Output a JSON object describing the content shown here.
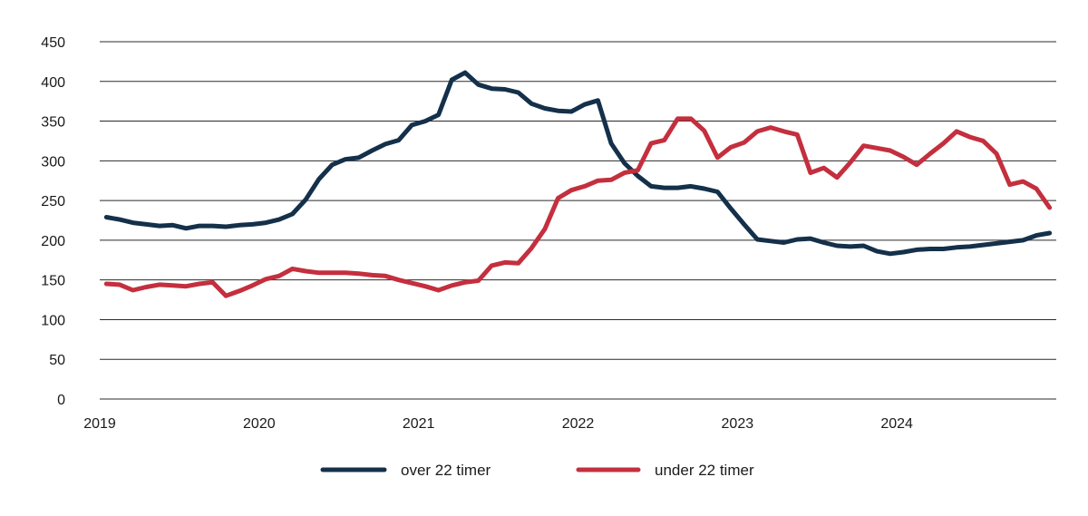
{
  "chart_data": {
    "type": "line",
    "title": "",
    "xlabel": "",
    "ylabel": "",
    "ylim": [
      0,
      450
    ],
    "yticks": [
      0,
      50,
      100,
      150,
      200,
      250,
      300,
      350,
      400,
      450
    ],
    "xlim": [
      2019,
      2025
    ],
    "xtick_labels": [
      "2019",
      "2020",
      "2021",
      "2022",
      "2023",
      "2024"
    ],
    "grid": "horizontal",
    "legend_position": "bottom-center",
    "x": [
      2019.0417,
      2019.125,
      2019.2083,
      2019.2917,
      2019.375,
      2019.4583,
      2019.5417,
      2019.625,
      2019.7083,
      2019.7917,
      2019.875,
      2019.9583,
      2020.0417,
      2020.125,
      2020.2083,
      2020.2917,
      2020.375,
      2020.4583,
      2020.5417,
      2020.625,
      2020.7083,
      2020.7917,
      2020.875,
      2020.9583,
      2021.0417,
      2021.125,
      2021.2083,
      2021.2917,
      2021.375,
      2021.4583,
      2021.5417,
      2021.625,
      2021.7083,
      2021.7917,
      2021.875,
      2021.9583,
      2022.0417,
      2022.125,
      2022.2083,
      2022.2917,
      2022.375,
      2022.4583,
      2022.5417,
      2022.625,
      2022.7083,
      2022.7917,
      2022.875,
      2022.9583,
      2023.0417,
      2023.125,
      2023.2083,
      2023.2917,
      2023.375,
      2023.4583,
      2023.5417,
      2023.625,
      2023.7083,
      2023.7917,
      2023.875,
      2023.9583,
      2024.0417,
      2024.125,
      2024.2083,
      2024.2917,
      2024.375,
      2024.4583,
      2024.5417,
      2024.625,
      2024.7083,
      2024.7917,
      2024.875,
      2024.9583
    ],
    "series": [
      {
        "name": "over 22 timer",
        "color": "#14304a",
        "values": [
          229,
          226,
          222,
          220,
          218,
          219,
          215,
          218,
          218,
          217,
          219,
          220,
          222,
          226,
          233,
          251,
          277,
          295,
          302,
          304,
          313,
          321,
          326,
          345,
          350,
          358,
          402,
          411,
          396,
          391,
          390,
          386,
          372,
          366,
          363,
          362,
          371,
          376,
          322,
          297,
          281,
          268,
          266,
          266,
          268,
          265,
          261,
          240,
          220,
          201,
          199,
          197,
          201,
          202,
          197,
          193,
          192,
          193,
          186,
          183,
          185,
          188,
          189,
          189,
          191,
          192,
          194,
          196,
          198,
          200,
          206,
          209
        ]
      },
      {
        "name": "under 22 timer",
        "color": "#c42f3e",
        "values": [
          145,
          144,
          137,
          141,
          144,
          143,
          142,
          145,
          147,
          130,
          136,
          143,
          151,
          155,
          164,
          161,
          159,
          159,
          159,
          158,
          156,
          155,
          150,
          146,
          142,
          137,
          143,
          147,
          149,
          168,
          172,
          171,
          190,
          214,
          253,
          263,
          268,
          275,
          276,
          285,
          288,
          322,
          326,
          353,
          353,
          338,
          304,
          317,
          323,
          337,
          342,
          337,
          333,
          285,
          291,
          279,
          298,
          319,
          316,
          313,
          305,
          295,
          309,
          322,
          337,
          330,
          325,
          309,
          270,
          274,
          265,
          241
        ]
      }
    ]
  }
}
